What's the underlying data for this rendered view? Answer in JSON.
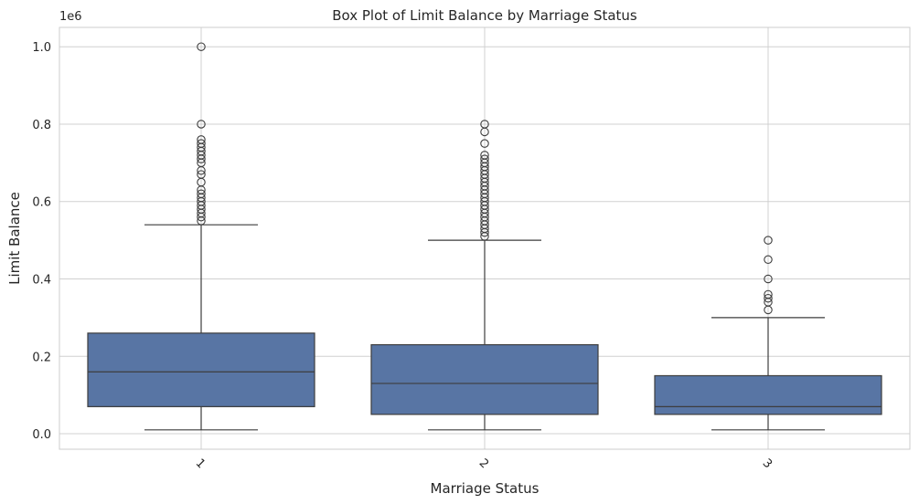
{
  "chart_data": {
    "type": "box",
    "title": "Box Plot of Limit Balance by Marriage Status",
    "xlabel": "Marriage Status",
    "ylabel": "Limit Balance",
    "offset_text": "1e6",
    "ylim": [
      -0.04,
      1.05
    ],
    "yticks": [
      0.0,
      0.2,
      0.4,
      0.6,
      0.8,
      1.0
    ],
    "ytick_labels": [
      "0.0",
      "0.2",
      "0.4",
      "0.6",
      "0.8",
      "1.0"
    ],
    "grid": true,
    "colors": {
      "box_fill": "#5875a4",
      "line": "#3d3d3d",
      "grid": "#d0d0d0",
      "frame": "#cccccc"
    },
    "categories": [
      "1",
      "2",
      "3"
    ],
    "boxes": [
      {
        "label": "1",
        "whisker_low": 0.01,
        "q1": 0.07,
        "median": 0.16,
        "q3": 0.26,
        "whisker_high": 0.54,
        "outliers": [
          0.55,
          0.56,
          0.57,
          0.58,
          0.59,
          0.6,
          0.61,
          0.62,
          0.63,
          0.65,
          0.67,
          0.68,
          0.7,
          0.71,
          0.72,
          0.73,
          0.74,
          0.75,
          0.76,
          0.8,
          1.0
        ]
      },
      {
        "label": "2",
        "whisker_low": 0.01,
        "q1": 0.05,
        "median": 0.13,
        "q3": 0.23,
        "whisker_high": 0.5,
        "outliers": [
          0.51,
          0.52,
          0.53,
          0.54,
          0.55,
          0.56,
          0.57,
          0.58,
          0.59,
          0.6,
          0.61,
          0.62,
          0.63,
          0.64,
          0.65,
          0.66,
          0.67,
          0.68,
          0.69,
          0.7,
          0.71,
          0.72,
          0.75,
          0.78,
          0.8
        ]
      },
      {
        "label": "3",
        "whisker_low": 0.01,
        "q1": 0.05,
        "median": 0.07,
        "q3": 0.15,
        "whisker_high": 0.3,
        "outliers": [
          0.32,
          0.34,
          0.35,
          0.36,
          0.4,
          0.45,
          0.5
        ]
      }
    ]
  }
}
